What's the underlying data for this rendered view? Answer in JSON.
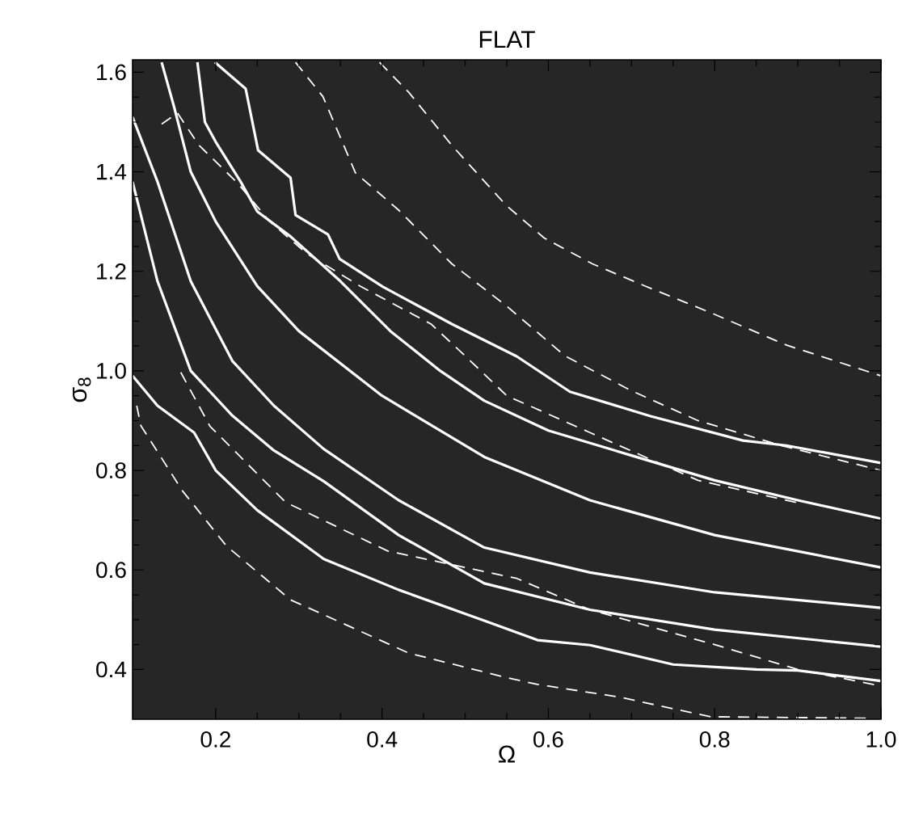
{
  "chart_data": {
    "type": "line",
    "title": "FLAT",
    "xlabel": "Ω",
    "ylabel": "σ$_{8}$",
    "xlim": [
      0.1,
      1.0
    ],
    "ylim": [
      0.3,
      1.625
    ],
    "xticks": [
      0.2,
      0.4,
      0.6,
      0.8,
      {
        "value": 1.0,
        "label": "1.0"
      }
    ],
    "yticks": [
      0.4,
      0.6,
      0.8,
      {
        "value": 1.0,
        "label": "1.0"
      },
      1.2,
      1.4,
      1.6
    ],
    "series": [
      {
        "color": "#ffffff",
        "line_style": "solid",
        "x": [
          0.135,
          0.15,
          0.17,
          0.2,
          0.25,
          0.3,
          0.4,
          0.523,
          0.65,
          0.8,
          1.0
        ],
        "values": [
          1.62,
          1.53,
          1.4,
          1.3,
          1.17,
          1.08,
          0.95,
          0.827,
          0.74,
          0.67,
          0.605
        ]
      },
      {
        "color": "#ffffff",
        "line_style": "solid",
        "x": [
          0.178,
          0.187,
          0.2,
          0.23,
          0.25,
          0.29,
          0.35,
          0.41,
          0.47,
          0.523,
          0.6,
          0.7,
          0.8,
          0.9,
          1.0
        ],
        "values": [
          1.62,
          1.5,
          1.46,
          1.38,
          1.32,
          1.27,
          1.18,
          1.08,
          1.0,
          0.94,
          0.88,
          0.83,
          0.78,
          0.74,
          0.703
        ]
      },
      {
        "color": "#ffffff",
        "line_style": "solid",
        "x": [
          0.199,
          0.236,
          0.251,
          0.29,
          0.296,
          0.335,
          0.349,
          0.401,
          0.484,
          0.562,
          0.626,
          0.723,
          0.834,
          0.886,
          1.0
        ],
        "values": [
          1.62,
          1.567,
          1.443,
          1.388,
          1.313,
          1.274,
          1.225,
          1.169,
          1.094,
          1.029,
          0.958,
          0.909,
          0.86,
          0.85,
          0.815
        ]
      },
      {
        "color": "#ffffff",
        "line_style": "solid",
        "x": [
          0.1,
          0.13,
          0.17,
          0.22,
          0.27,
          0.33,
          0.42,
          0.523,
          0.65,
          0.8,
          1.0
        ],
        "values": [
          1.51,
          1.38,
          1.18,
          1.02,
          0.93,
          0.843,
          0.74,
          0.645,
          0.595,
          0.555,
          0.524
        ]
      },
      {
        "color": "#ffffff",
        "line_style": "solid",
        "x": [
          0.1,
          0.13,
          0.17,
          0.22,
          0.27,
          0.33,
          0.42,
          0.523,
          0.65,
          0.8,
          1.0
        ],
        "values": [
          1.38,
          1.18,
          1.0,
          0.91,
          0.84,
          0.778,
          0.67,
          0.573,
          0.52,
          0.48,
          0.446
        ]
      },
      {
        "color": "#ffffff",
        "line_style": "solid",
        "x": [
          0.1,
          0.13,
          0.174,
          0.2,
          0.25,
          0.33,
          0.42,
          0.523,
          0.587,
          0.65,
          0.75,
          0.85,
          0.9,
          1.0
        ],
        "values": [
          0.99,
          0.93,
          0.876,
          0.8,
          0.72,
          0.622,
          0.56,
          0.498,
          0.459,
          0.449,
          0.41,
          0.4,
          0.398,
          0.377
        ]
      },
      {
        "color": "#ffffff",
        "line_style": "dashed",
        "x": [
          0.397,
          0.432,
          0.484,
          0.549,
          0.595,
          0.653,
          0.717,
          0.795,
          0.886,
          1.0
        ],
        "values": [
          1.62,
          1.56,
          1.453,
          1.333,
          1.267,
          1.215,
          1.17,
          1.117,
          1.052,
          0.99
        ]
      },
      {
        "color": "#ffffff",
        "line_style": "dashed",
        "x": [
          0.296,
          0.329,
          0.368,
          0.42,
          0.484,
          0.55,
          0.62,
          0.7,
          0.78,
          0.88,
          1.0
        ],
        "values": [
          1.62,
          1.551,
          1.398,
          1.323,
          1.215,
          1.13,
          1.03,
          0.96,
          0.9,
          0.85,
          0.8
        ]
      },
      {
        "color": "#ffffff",
        "line_style": "dashed",
        "x": [
          0.135,
          0.154,
          0.18,
          0.226,
          0.265,
          0.31,
          0.374,
          0.459,
          0.5,
          0.55,
          0.65,
          0.78,
          0.9
        ],
        "values": [
          1.496,
          1.518,
          1.453,
          1.378,
          1.3,
          1.235,
          1.17,
          1.094,
          1.03,
          0.95,
          0.876,
          0.78,
          0.735
        ]
      },
      {
        "color": "#ffffff",
        "line_style": "dashed",
        "x": [
          0.158,
          0.193,
          0.284,
          0.407,
          0.562,
          0.65,
          0.8,
          0.9,
          1.0
        ],
        "values": [
          0.997,
          0.889,
          0.736,
          0.638,
          0.583,
          0.52,
          0.45,
          0.4,
          0.367
        ]
      },
      {
        "color": "#ffffff",
        "line_style": "dashed",
        "x": [
          0.105,
          0.11,
          0.16,
          0.213,
          0.29,
          0.432,
          0.549,
          0.587,
          0.684,
          0.795,
          0.99
        ],
        "values": [
          0.93,
          0.89,
          0.759,
          0.648,
          0.54,
          0.433,
          0.384,
          0.37,
          0.345,
          0.305,
          0.302
        ]
      }
    ]
  }
}
